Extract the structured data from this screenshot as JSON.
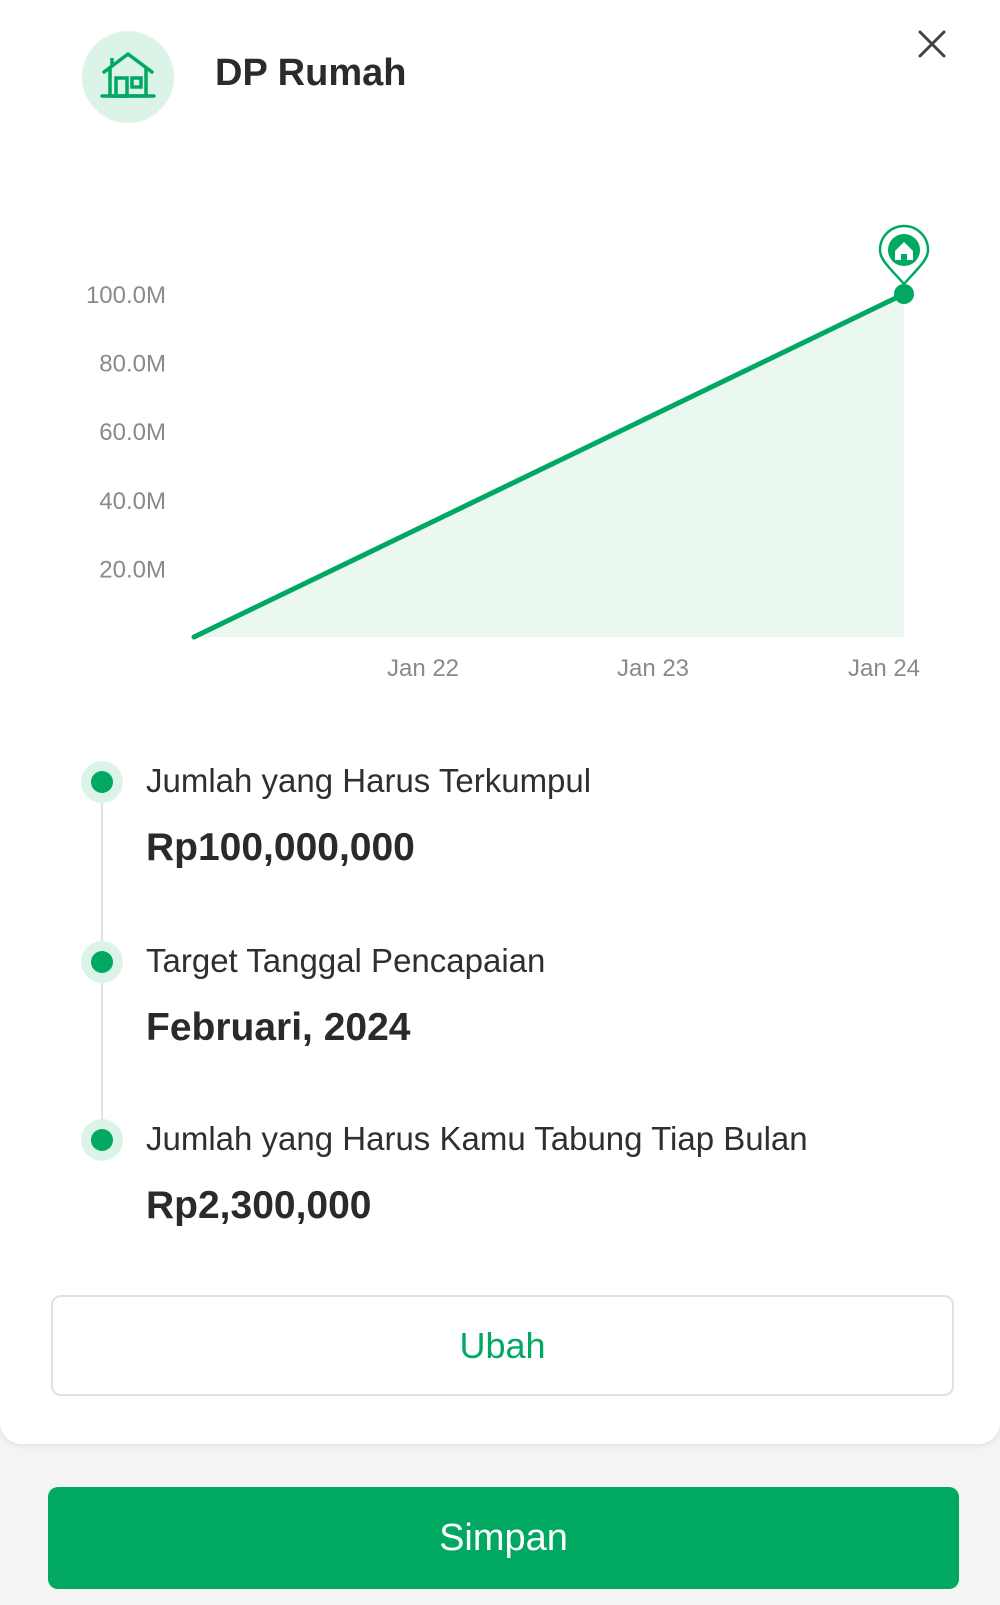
{
  "header": {
    "title": "DP Rumah",
    "goal_icon": "house-icon",
    "close_icon": "close-icon"
  },
  "chart_data": {
    "type": "area",
    "title": "",
    "xlabel": "",
    "ylabel": "",
    "x_ticks": [
      "Jan 22",
      "Jan 23",
      "Jan 24"
    ],
    "y_ticks": [
      "20.0M",
      "40.0M",
      "60.0M",
      "80.0M",
      "100.0M"
    ],
    "y_tick_values": [
      20000000,
      40000000,
      60000000,
      80000000,
      100000000
    ],
    "ylim": [
      0,
      100000000
    ],
    "series": [
      {
        "x": [
          "Feb 21",
          "Jan 24"
        ],
        "values": [
          0,
          100000000
        ]
      }
    ],
    "end_marker_icon": "house-pin-icon",
    "grid": false,
    "colors": {
      "line": "#00a862",
      "fill": "#eaf8f0"
    }
  },
  "timeline": {
    "items": [
      {
        "label": "Jumlah yang Harus Terkumpul",
        "value": "Rp100,000,000"
      },
      {
        "label": "Target Tanggal Pencapaian",
        "value": "Februari, 2024"
      },
      {
        "label": "Jumlah yang Harus Kamu Tabung Tiap Bulan",
        "value": "Rp2,300,000"
      }
    ]
  },
  "buttons": {
    "edit_label": "Ubah",
    "save_label": "Simpan"
  },
  "colors": {
    "accent": "#00a862",
    "accent_light": "#dcf4e8"
  }
}
